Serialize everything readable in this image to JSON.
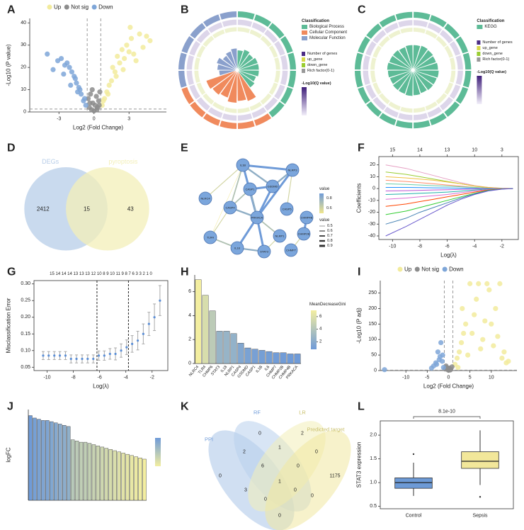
{
  "chart_data": [
    {
      "panel": "A",
      "type": "scatter",
      "xlabel": "Log2 (Fold Change)",
      "ylabel": "-Log10 (P value)",
      "xlim": [
        -5.5,
        6.2
      ],
      "ylim": [
        0,
        42
      ],
      "xticks": [
        -3,
        0,
        3
      ],
      "yticks": [
        0,
        10,
        20,
        30,
        40
      ],
      "cutoffs": {
        "x": [
          -0.58,
          0.58
        ],
        "y": 1.3
      },
      "series": [
        {
          "name": "Up",
          "color": "#f2eb9c",
          "x": [
            0.7,
            0.9,
            1.1,
            1.3,
            1.5,
            1.6,
            1.8,
            2.0,
            2.2,
            2.4,
            2.6,
            2.8,
            3.0,
            3.2,
            3.4,
            3.6,
            3.9,
            4.2,
            4.5,
            4.8,
            1.2,
            1.9,
            2.5,
            3.1,
            0.8
          ],
          "values": [
            3,
            6,
            9,
            12,
            14,
            20,
            18,
            25,
            22,
            28,
            24,
            30,
            27,
            33,
            26,
            23,
            35,
            29,
            34,
            32,
            8,
            16,
            19,
            38,
            5
          ]
        },
        {
          "name": "Not sig",
          "color": "#8c8c8c",
          "x": [
            -0.5,
            -0.4,
            -0.3,
            -0.2,
            -0.1,
            0,
            0.1,
            0.2,
            0.3,
            0.4,
            0.5,
            -0.35,
            0.25,
            -0.15,
            0.45
          ],
          "values": [
            6,
            2,
            8,
            1,
            4,
            0.5,
            3,
            7,
            2,
            5,
            9,
            4,
            1,
            10,
            3
          ]
        },
        {
          "name": "Down",
          "color": "#7ea6d8",
          "x": [
            -0.7,
            -0.9,
            -1.1,
            -1.3,
            -1.5,
            -1.7,
            -1.9,
            -2.1,
            -2.3,
            -2.5,
            -2.8,
            -3.1,
            -3.5,
            -4.0,
            -1.2,
            -1.6,
            -2.0,
            -2.6,
            -0.8,
            -1.4
          ],
          "values": [
            3,
            5,
            8,
            11,
            13,
            16,
            18,
            20,
            22,
            21,
            24,
            23,
            19,
            26,
            10,
            15,
            12,
            17,
            6,
            9
          ]
        }
      ]
    },
    {
      "panel": "B",
      "type": "circos",
      "legend_title": "Classification",
      "legend_items": [
        "Number of genes",
        "up_gene",
        "down_gene",
        "Rich factor(0-1)"
      ],
      "scale_title": "-Log10(Q value)",
      "series": [
        {
          "name": "Biological Process",
          "color": "#5dbb97",
          "values": [
            0.55,
            0.6,
            0.55,
            0.6,
            0.6,
            0.6,
            0.55,
            0.6
          ]
        },
        {
          "name": "Cellular Component",
          "color": "#f08a5d",
          "values": [
            0.9,
            0.85,
            0.9,
            0.8,
            0.85,
            0.9
          ]
        },
        {
          "name": "Molecular Function",
          "color": "#8aa0cc",
          "values": [
            0.5,
            0.55,
            0.6,
            0.5,
            0.55,
            0.6
          ]
        }
      ]
    },
    {
      "panel": "C",
      "type": "circos",
      "legend_title": "Classification",
      "legend_items": [
        "Number of genes",
        "up_gene",
        "down_gene",
        "Rich factor(0-1)"
      ],
      "scale_title": "-Log10(Q value)",
      "series": [
        {
          "name": "KEGG",
          "color": "#5dbb97",
          "values": [
            0.7,
            0.72,
            0.7,
            0.68,
            0.7,
            0.72,
            0.7,
            0.7,
            0.68,
            0.7,
            0.72,
            0.7,
            0.7,
            0.68,
            0.7,
            0.72,
            0.7,
            0.7,
            0.68,
            0.7
          ]
        }
      ]
    },
    {
      "panel": "D",
      "type": "venn",
      "sets": [
        {
          "name": "DEGs",
          "color": "#b7cde8"
        },
        {
          "name": "pyroptosis",
          "color": "#f3efb8"
        }
      ],
      "regions": [
        2412,
        15,
        43
      ]
    },
    {
      "panel": "E",
      "type": "network",
      "nodes": [
        "IL1B",
        "NLRP3",
        "CASP1",
        "GSDMD",
        "NLRC4",
        "CASP4",
        "PRKACA",
        "TLR4",
        "IL18",
        "STAT3",
        "CASP5",
        "CHMP4B",
        "CHMP2B",
        "CHMP7",
        "NLRP1"
      ],
      "edges": {
        "source": [
          0,
          0,
          0,
          0,
          0,
          0,
          0,
          1,
          1,
          1,
          2,
          2,
          3,
          5,
          5,
          6,
          6,
          8,
          7,
          6,
          9,
          11,
          12,
          2
        ],
        "target": [
          1,
          2,
          3,
          4,
          5,
          6,
          7,
          3,
          6,
          10,
          3,
          6,
          6,
          6,
          7,
          8,
          9,
          9,
          8,
          14,
          14,
          12,
          13,
          5
        ],
        "values": [
          0.9,
          0.7,
          0.8,
          0.6,
          0.7,
          0.9,
          0.5,
          0.8,
          0.9,
          0.6,
          0.9,
          0.8,
          0.9,
          0.8,
          0.6,
          0.9,
          0.9,
          0.8,
          0.7,
          0.7,
          0.6,
          0.9,
          0.6,
          0.7
        ]
      },
      "color_title": "value",
      "color_ticks": [
        0.6,
        0.8
      ],
      "width_title": "value",
      "width_ticks": [
        0.5,
        0.6,
        0.7,
        0.8,
        0.9
      ]
    },
    {
      "panel": "F",
      "type": "line",
      "xlabel": "Log(λ)",
      "ylabel": "Coefficients",
      "xlim": [
        -11,
        -0.8
      ],
      "ylim": [
        -43,
        27
      ],
      "xticks": [
        -10,
        -8,
        -6,
        -4,
        -2
      ],
      "yticks": [
        -40,
        -30,
        -20,
        -10,
        0,
        10,
        20
      ],
      "top_ticks": [
        {
          "value": -10,
          "label": "15"
        },
        {
          "value": -8,
          "label": "14"
        },
        {
          "value": -6,
          "label": "13"
        },
        {
          "value": -4,
          "label": "10"
        },
        {
          "value": -2,
          "label": "3"
        }
      ],
      "x": [
        -10.5,
        -9,
        -8,
        -7,
        -6,
        -5,
        -4,
        -3,
        -2,
        -1.2
      ],
      "series": [
        {
          "color": "#e6a0c4",
          "values": [
            20,
            17,
            14,
            11,
            8,
            5,
            2.5,
            1,
            0.2,
            0
          ]
        },
        {
          "color": "#9acd32",
          "values": [
            14,
            12,
            10,
            8,
            6,
            4,
            2,
            0.8,
            0.1,
            0
          ]
        },
        {
          "color": "#f0c040",
          "values": [
            10,
            9,
            8,
            7,
            5.5,
            4,
            2.2,
            1,
            0.3,
            0
          ]
        },
        {
          "color": "#ff8c69",
          "values": [
            7,
            6,
            5,
            4,
            3,
            2,
            1,
            0.4,
            0,
            0
          ]
        },
        {
          "color": "#66cdaa",
          "values": [
            4,
            3.5,
            3,
            2.5,
            2,
            1.5,
            0.8,
            0.3,
            0,
            0
          ]
        },
        {
          "color": "#1e90ff",
          "values": [
            1,
            1,
            0.8,
            0.6,
            0.5,
            0.3,
            0.1,
            0,
            0,
            0
          ]
        },
        {
          "color": "#ba55d3",
          "values": [
            -2,
            -1.8,
            -1.5,
            -1.2,
            -1,
            -0.7,
            -0.3,
            0,
            0,
            0
          ]
        },
        {
          "color": "#20b2aa",
          "values": [
            -5,
            -4.5,
            -4,
            -3.5,
            -3,
            -2.2,
            -1.2,
            -0.4,
            0,
            0
          ]
        },
        {
          "color": "#da70d6",
          "values": [
            -9,
            -8,
            -7,
            -6,
            -5,
            -3.5,
            -2,
            -0.8,
            -0.1,
            0
          ]
        },
        {
          "color": "#ff4500",
          "values": [
            -15,
            -13,
            -11,
            -9,
            -7,
            -5,
            -3,
            -1.2,
            -0.2,
            0
          ]
        },
        {
          "color": "#32cd32",
          "values": [
            -22,
            -19,
            -16,
            -13,
            -10,
            -7,
            -4,
            -1.5,
            -0.3,
            0
          ]
        },
        {
          "color": "#4682b4",
          "values": [
            -30,
            -25,
            -20,
            -16,
            -12,
            -8,
            -4.5,
            -1.8,
            -0.4,
            0
          ]
        },
        {
          "color": "#6a5acd",
          "values": [
            -40,
            -32,
            -26,
            -20,
            -14,
            -9,
            -5,
            -2,
            -0.5,
            0
          ]
        }
      ]
    },
    {
      "panel": "G",
      "type": "errorbar",
      "xlabel": "Log(λ)",
      "ylabel": "Misclassification Error",
      "xlim": [
        -11,
        -0.8
      ],
      "ylim": [
        0.04,
        0.31
      ],
      "xticks": [
        -10,
        -8,
        -6,
        -4,
        -2
      ],
      "yticks": [
        0.05,
        {
          "value": 0.1,
          "label": "0.10"
        },
        0.15,
        {
          "value": 0.2,
          "label": "0.20"
        },
        0.25,
        {
          "value": 0.3,
          "label": "0.30"
        }
      ],
      "top_label": "15 14 14 14 13 13 13 12 10 8 9 10 11 9 8 7 6 3 3 2 1 0",
      "vlines": [
        -6.2,
        -3.8
      ],
      "x": [
        -10.3,
        -9.88,
        -9.45,
        -9.03,
        -8.6,
        -8.18,
        -7.76,
        -7.33,
        -6.91,
        -6.48,
        -6.06,
        -5.64,
        -5.21,
        -4.79,
        -4.36,
        -3.94,
        -3.52,
        -3.09,
        -2.67,
        -2.24,
        -1.82,
        -1.4
      ],
      "values": [
        0.085,
        0.085,
        0.085,
        0.085,
        0.085,
        0.075,
        0.075,
        0.075,
        0.075,
        0.075,
        0.085,
        0.085,
        0.09,
        0.09,
        0.1,
        0.11,
        0.12,
        0.13,
        0.15,
        0.18,
        0.2,
        0.25
      ],
      "errors": [
        0.012,
        0.012,
        0.012,
        0.012,
        0.012,
        0.012,
        0.012,
        0.012,
        0.012,
        0.012,
        0.014,
        0.014,
        0.016,
        0.018,
        0.02,
        0.022,
        0.025,
        0.028,
        0.03,
        0.035,
        0.04,
        0.045
      ]
    },
    {
      "panel": "H",
      "type": "bar",
      "ylim": [
        0,
        7.4
      ],
      "yticks": [
        0,
        2,
        4,
        6
      ],
      "categories": [
        "NLRC4",
        "TLR4",
        "CHMP6",
        "STAT3",
        "IL18",
        "NLRP1",
        "CASP4",
        "GSDMD",
        "CASP1",
        "IL1B",
        "IL6",
        "CHMP7",
        "CHMP2B",
        "CHMP4B",
        "PRKACA"
      ],
      "values": [
        7,
        5.7,
        4.4,
        2.7,
        2.7,
        2.5,
        1.7,
        1.3,
        1.2,
        1.1,
        1.0,
        0.9,
        0.9,
        0.8,
        0.8
      ],
      "colorscale": [
        "#6f9bd8",
        "#f3eea0"
      ],
      "colorbar_title": "MeanDecreaseGini",
      "colorbar_ticks": [
        2,
        4,
        6
      ]
    },
    {
      "panel": "I",
      "type": "scatter",
      "xlabel": "Log2 (Fold Change)",
      "ylabel": "-Log10 (P adj)",
      "xlim": [
        -16,
        16
      ],
      "ylim": [
        0,
        290
      ],
      "xticks": [
        -10,
        -5,
        0,
        5,
        10
      ],
      "yticks": [
        0,
        50,
        100,
        150,
        200,
        250
      ],
      "cutoffs": {
        "x": [
          -1,
          1
        ],
        "y": 1.3
      },
      "series": [
        {
          "name": "Up",
          "color": "#f2eb9c",
          "x": [
            1.5,
            2,
            2.5,
            3,
            3.5,
            4,
            5,
            6,
            7,
            8,
            9,
            10,
            11,
            12,
            13,
            14,
            2.2,
            4.5,
            6.5,
            8.5,
            10.5,
            12.5,
            3.2,
            5.5,
            7.5,
            9.5,
            11.5,
            13.5
          ],
          "values": [
            20,
            40,
            60,
            90,
            120,
            150,
            280,
            180,
            280,
            100,
            280,
            150,
            200,
            280,
            60,
            30,
            10,
            50,
            230,
            160,
            80,
            40,
            200,
            120,
            70,
            260,
            110,
            25
          ]
        },
        {
          "name": "Not sig",
          "color": "#8c8c8c",
          "x": [
            -0.8,
            -0.5,
            -0.2,
            0,
            0.2,
            0.5,
            0.8,
            -0.6,
            0.4,
            0.1
          ],
          "values": [
            5,
            10,
            3,
            1,
            8,
            4,
            12,
            15,
            2,
            6
          ]
        },
        {
          "name": "Down",
          "color": "#7ea6d8",
          "x": [
            -1.2,
            -1.5,
            -2,
            -2.5,
            -3,
            -3.5,
            -4,
            -1.8,
            -2.2,
            -15,
            -1.4,
            -2.8
          ],
          "values": [
            10,
            30,
            45,
            60,
            25,
            15,
            8,
            90,
            35,
            3,
            50,
            20
          ]
        }
      ]
    },
    {
      "panel": "J",
      "type": "bar",
      "ylabel": "logFC",
      "ylim": [
        0,
        75
      ],
      "values": [
        70,
        68,
        67,
        66,
        66,
        65,
        64,
        63,
        62,
        61,
        50,
        49,
        48,
        48,
        47,
        46,
        45,
        44,
        43,
        42,
        41,
        40,
        39,
        38,
        37,
        36,
        35,
        34
      ],
      "colorscale": [
        "#f3eea0",
        "#6f9bd8"
      ]
    },
    {
      "panel": "K",
      "type": "venn4",
      "sets": [
        {
          "name": "PPI",
          "color": "#a9c4e8"
        },
        {
          "name": "RF",
          "color": "#b8d0ec"
        },
        {
          "name": "LR",
          "color": "#f3efb8"
        },
        {
          "name": "Predicted target",
          "color": "#f0e8a0"
        }
      ],
      "regions": [
        0,
        2,
        2,
        1,
        0,
        0,
        6,
        0,
        1175,
        1,
        3,
        0,
        0,
        0,
        0
      ]
    },
    {
      "panel": "L",
      "type": "box",
      "ylabel": "STAT3 expression",
      "ylim": [
        0.45,
        2.3
      ],
      "yticks": [
        0.5,
        {
          "value": 1,
          "label": "1.0"
        },
        1.5,
        {
          "value": 2,
          "label": "2.0"
        }
      ],
      "categories": [
        "Control",
        "Sepsis"
      ],
      "box_colors": [
        "#6d9ad6",
        "#f2e79a"
      ],
      "pvalue": "8.1e-10",
      "boxes": [
        {
          "whislo": 0.72,
          "q1": 0.88,
          "median": 1.0,
          "q3": 1.1,
          "whishi": 1.42,
          "outliers": [
            1.6
          ]
        },
        {
          "whislo": 0.95,
          "q1": 1.3,
          "median": 1.45,
          "q3": 1.65,
          "whishi": 2.1,
          "outliers": [
            0.7
          ]
        }
      ]
    }
  ]
}
